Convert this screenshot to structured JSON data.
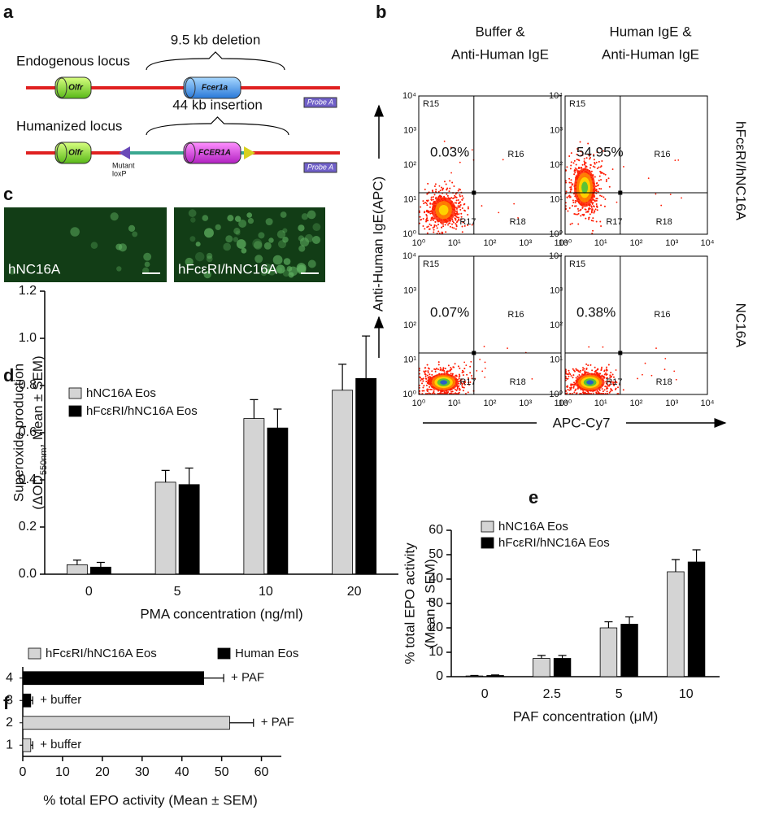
{
  "panel_labels": [
    "a",
    "b",
    "c",
    "d",
    "e",
    "f"
  ],
  "diagram_a": {
    "endogenous": {
      "label": "Endogenous locus",
      "bracket": "9.5 kb deletion",
      "gene1": "Olfr",
      "gene2": "Fcer1a",
      "probe": "Probe A"
    },
    "humanized": {
      "label": "Humanized locus",
      "bracket": "44 kb insertion",
      "gene1": "Olfr",
      "gene2": "FCER1A",
      "lox": [
        "Mutant",
        "loxP"
      ],
      "probe": "Probe A"
    }
  },
  "micrographs_c": [
    "hNC16A",
    "hFcεRI/hNC16A"
  ],
  "flow_b": {
    "columns": [
      [
        "Buffer &",
        "Anti-Human IgE"
      ],
      [
        "Human IgE &",
        "Anti-Human IgE"
      ]
    ],
    "rows": [
      "hFcεRI/hNC16A",
      "NC16A"
    ],
    "y_label": "Anti-Human IgE(APC)",
    "x_label": "APC-Cy7",
    "ticks": [
      "10⁰",
      "10¹",
      "10²",
      "10³",
      "10⁴"
    ],
    "gates": [
      "R15",
      "R16",
      "R17",
      "R18"
    ],
    "percentages": [
      [
        "0.03%",
        "54.95%"
      ],
      [
        "0.07%",
        "0.38%"
      ]
    ]
  },
  "chart_data": [
    {
      "type": "bar",
      "categories": [
        "0",
        "5",
        "10",
        "20"
      ],
      "x_label": "PMA concentration (ng/ml)",
      "y_label": [
        "Superoxide production",
        "(ΔOD",
        "550nm",
        ", Mean ± SEM)"
      ],
      "series": [
        {
          "name": "hNC16A Eos",
          "color": "#d4d4d4",
          "values": [
            0.04,
            0.39,
            0.66,
            0.78
          ],
          "errors": [
            0.02,
            0.05,
            0.08,
            0.11
          ]
        },
        {
          "name": "hFcεRI/hNC16A Eos",
          "color": "#000000",
          "values": [
            0.03,
            0.38,
            0.62,
            0.83
          ],
          "errors": [
            0.02,
            0.07,
            0.08,
            0.18
          ]
        }
      ],
      "ylim": [
        0,
        1.2
      ],
      "yticks": [
        {
          "value": 0,
          "label": "0.0"
        },
        0.2,
        0.4,
        0.6,
        0.8,
        {
          "value": 1,
          "label": "1.0"
        },
        1.2
      ]
    },
    {
      "type": "bar",
      "categories": [
        "0",
        "2.5",
        "5",
        "10"
      ],
      "x_label": "PAF concentration (μM)",
      "y_label": [
        "% total EPO activity",
        "(Mean ± SEM)"
      ],
      "series": [
        {
          "name": "hNC16A Eos",
          "color": "#d4d4d4",
          "values": [
            0.3,
            7.5,
            20,
            43
          ],
          "errors": [
            0.2,
            1.2,
            2.5,
            5
          ]
        },
        {
          "name": "hFcεRI/hNC16A Eos",
          "color": "#000000",
          "values": [
            0.5,
            7.5,
            21.5,
            47
          ],
          "errors": [
            0.2,
            1.2,
            3,
            5
          ]
        }
      ],
      "ylim": [
        0,
        60
      ],
      "yticks": [
        0,
        10,
        20,
        30,
        40,
        50,
        60
      ]
    },
    {
      "type": "barh",
      "categories": [
        "1",
        "2",
        "3",
        "4"
      ],
      "x_label": "% total EPO activity (Mean ± SEM)",
      "series": [
        {
          "name": "hFcεRI/hNC16A Eos",
          "color": "#d4d4d4",
          "values": [
            2,
            52,
            null,
            null
          ],
          "errors": [
            0.5,
            6,
            null,
            null
          ]
        },
        {
          "name": "Human Eos",
          "color": "#000000",
          "values": [
            null,
            null,
            2,
            45.5
          ],
          "errors": [
            null,
            null,
            0.5,
            5
          ]
        }
      ],
      "annotations": [
        "+ buffer",
        "+ PAF",
        "+ buffer",
        "+ PAF"
      ],
      "xlim": [
        0,
        65
      ],
      "xticks": [
        0,
        10,
        20,
        30,
        40,
        50,
        60
      ]
    }
  ]
}
